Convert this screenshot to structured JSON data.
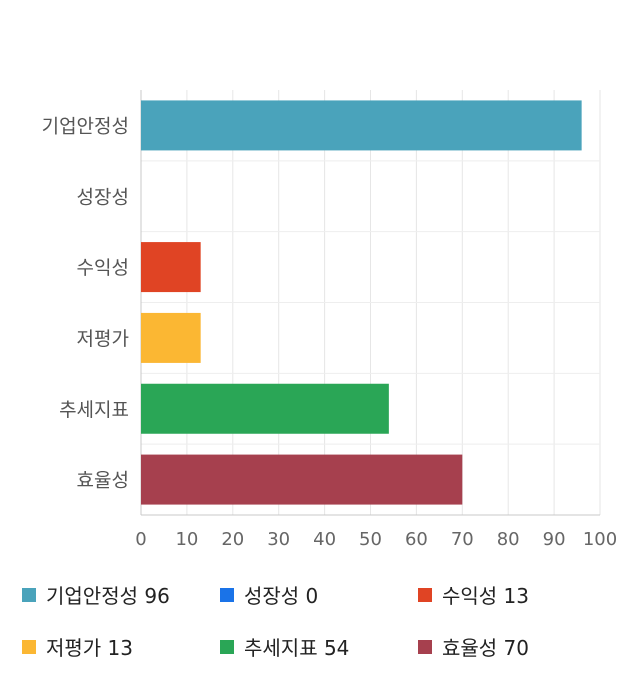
{
  "chart_data": {
    "type": "bar",
    "orientation": "horizontal",
    "categories": [
      "기업안정성",
      "성장성",
      "수익성",
      "저평가",
      "추세지표",
      "효율성"
    ],
    "values": [
      96,
      0,
      13,
      13,
      54,
      70
    ],
    "colors": [
      "#4aa3bb",
      "#1a73e8",
      "#e04424",
      "#fbb733",
      "#2aa656",
      "#a6404e"
    ],
    "xlim": [
      0,
      100
    ],
    "xticks": [
      0,
      10,
      20,
      30,
      40,
      50,
      60,
      70,
      80,
      90,
      100
    ],
    "grid": true,
    "legend": {
      "placement": "bottom",
      "items": [
        {
          "label": "기업안정성 96",
          "color": "#4aa3bb"
        },
        {
          "label": "성장성 0",
          "color": "#1a73e8"
        },
        {
          "label": "수익성 13",
          "color": "#e04424"
        },
        {
          "label": "저평가 13",
          "color": "#fbb733"
        },
        {
          "label": "추세지표 54",
          "color": "#2aa656"
        },
        {
          "label": "효율성 70",
          "color": "#a6404e"
        }
      ]
    }
  }
}
